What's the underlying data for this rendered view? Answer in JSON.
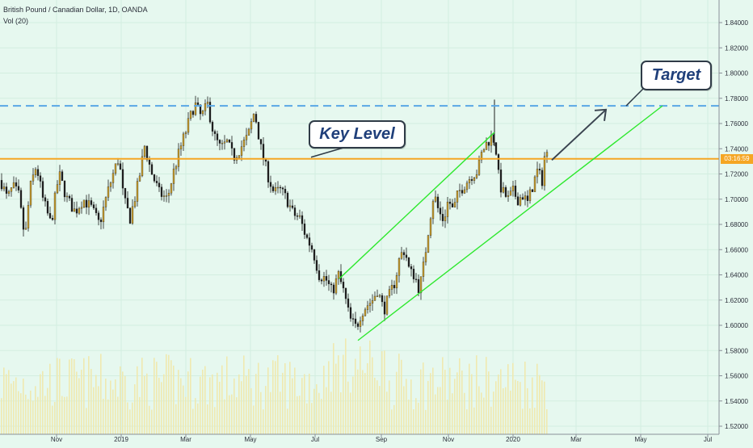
{
  "header": {
    "title": "British Pound / Canadian Dollar, 1D, OANDA",
    "volume_label": "Vol (20)"
  },
  "price_tag": "03:16:59",
  "annotations": {
    "key_level": "Key Level",
    "target": "Target"
  },
  "colors": {
    "background": "#e6f8ef",
    "up_candle": "#c59a2c",
    "down_candle": "#1f1f1f",
    "volume": "#efe9b0",
    "key_level_line": "#f5a623",
    "target_line": "#5aa7e6",
    "channel": "#2ee82e"
  },
  "chart_data": {
    "type": "candlestick",
    "title": "British Pound / Canadian Dollar, 1D, OANDA",
    "y_axis": {
      "ticks": [
        "1.84000",
        "1.82000",
        "1.80000",
        "1.78000",
        "1.76000",
        "1.74000",
        "1.72000",
        "1.70000",
        "1.68000",
        "1.66000",
        "1.64000",
        "1.62000",
        "1.60000",
        "1.58000",
        "1.56000",
        "1.54000",
        "1.52000"
      ],
      "range": [
        1.515,
        1.855
      ]
    },
    "x_axis": {
      "ticks": [
        "Nov",
        "2019",
        "Mar",
        "May",
        "Jul",
        "Sep",
        "Nov",
        "2020",
        "Mar",
        "May",
        "Jul"
      ]
    },
    "price_path": [
      [
        0,
        1.715
      ],
      [
        8,
        1.7
      ],
      [
        15,
        1.71
      ],
      [
        22,
        1.703
      ],
      [
        30,
        1.668
      ],
      [
        36,
        1.708
      ],
      [
        44,
        1.727
      ],
      [
        52,
        1.7
      ],
      [
        62,
        1.68
      ],
      [
        72,
        1.72
      ],
      [
        82,
        1.7
      ],
      [
        92,
        1.69
      ],
      [
        102,
        1.7
      ],
      [
        112,
        1.693
      ],
      [
        122,
        1.68
      ],
      [
        132,
        1.705
      ],
      [
        140,
        1.722
      ],
      [
        146,
        1.733
      ],
      [
        152,
        1.7
      ],
      [
        160,
        1.685
      ],
      [
        170,
        1.712
      ],
      [
        178,
        1.742
      ],
      [
        186,
        1.722
      ],
      [
        196,
        1.705
      ],
      [
        206,
        1.7
      ],
      [
        214,
        1.722
      ],
      [
        222,
        1.74
      ],
      [
        232,
        1.76
      ],
      [
        240,
        1.776
      ],
      [
        248,
        1.765
      ],
      [
        256,
        1.775
      ],
      [
        264,
        1.75
      ],
      [
        272,
        1.74
      ],
      [
        280,
        1.745
      ],
      [
        288,
        1.733
      ],
      [
        296,
        1.74
      ],
      [
        306,
        1.75
      ],
      [
        314,
        1.77
      ],
      [
        322,
        1.74
      ],
      [
        330,
        1.72
      ],
      [
        338,
        1.705
      ],
      [
        346,
        1.707
      ],
      [
        354,
        1.7
      ],
      [
        362,
        1.688
      ],
      [
        370,
        1.685
      ],
      [
        378,
        1.67
      ],
      [
        386,
        1.66
      ],
      [
        394,
        1.64
      ],
      [
        402,
        1.637
      ],
      [
        410,
        1.626
      ],
      [
        418,
        1.64
      ],
      [
        425,
        1.625
      ],
      [
        432,
        1.605
      ],
      [
        440,
        1.598
      ],
      [
        446,
        1.61
      ],
      [
        452,
        1.615
      ],
      [
        460,
        1.62
      ],
      [
        466,
        1.628
      ],
      [
        474,
        1.612
      ],
      [
        480,
        1.622
      ],
      [
        488,
        1.635
      ],
      [
        494,
        1.655
      ],
      [
        500,
        1.66
      ],
      [
        506,
        1.642
      ],
      [
        512,
        1.64
      ],
      [
        518,
        1.628
      ],
      [
        524,
        1.65
      ],
      [
        530,
        1.68
      ],
      [
        536,
        1.705
      ],
      [
        542,
        1.69
      ],
      [
        548,
        1.683
      ],
      [
        554,
        1.7
      ],
      [
        560,
        1.69
      ],
      [
        566,
        1.705
      ],
      [
        572,
        1.71
      ],
      [
        578,
        1.715
      ],
      [
        584,
        1.72
      ],
      [
        590,
        1.722
      ],
      [
        596,
        1.738
      ],
      [
        602,
        1.745
      ],
      [
        608,
        1.75
      ],
      [
        612,
        1.745
      ],
      [
        617,
        1.712
      ],
      [
        622,
        1.705
      ],
      [
        628,
        1.7
      ],
      [
        634,
        1.706
      ],
      [
        640,
        1.7
      ],
      [
        646,
        1.703
      ],
      [
        652,
        1.697
      ],
      [
        658,
        1.71
      ],
      [
        664,
        1.722
      ],
      [
        670,
        1.715
      ],
      [
        674,
        1.74
      ],
      [
        678,
        1.73
      ]
    ],
    "volume_series": "daily volume bars (Vol 20), unlabeled",
    "overlays": {
      "key_level": {
        "label": "Key Level",
        "price": 1.732,
        "style": "solid orange"
      },
      "target_level": {
        "label": "Target",
        "price": 1.774,
        "style": "dashed blue"
      },
      "ascending_channel": {
        "upper": [
          [
            420,
            1.637
          ],
          [
            612,
            1.753
          ]
        ],
        "lower": [
          [
            443,
            1.588
          ],
          [
            820,
            1.774
          ]
        ]
      },
      "projection_arrow": {
        "from": [
          683,
          1.731
        ],
        "to": [
          750,
          1.771
        ]
      }
    },
    "current_price_marker": "03:16:59"
  }
}
